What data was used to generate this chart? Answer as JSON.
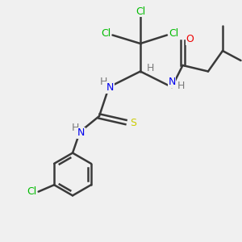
{
  "background_color": "#f0f0f0",
  "bond_color": "#3a3a3a",
  "bond_width": 1.8,
  "atom_colors": {
    "Cl": "#00bb00",
    "N": "#0000ee",
    "O": "#ee0000",
    "S": "#cccc00",
    "C": "#3a3a3a",
    "H": "#7a7a7a"
  },
  "font_size": 9,
  "fig_size": [
    3.0,
    3.0
  ],
  "dpi": 100
}
